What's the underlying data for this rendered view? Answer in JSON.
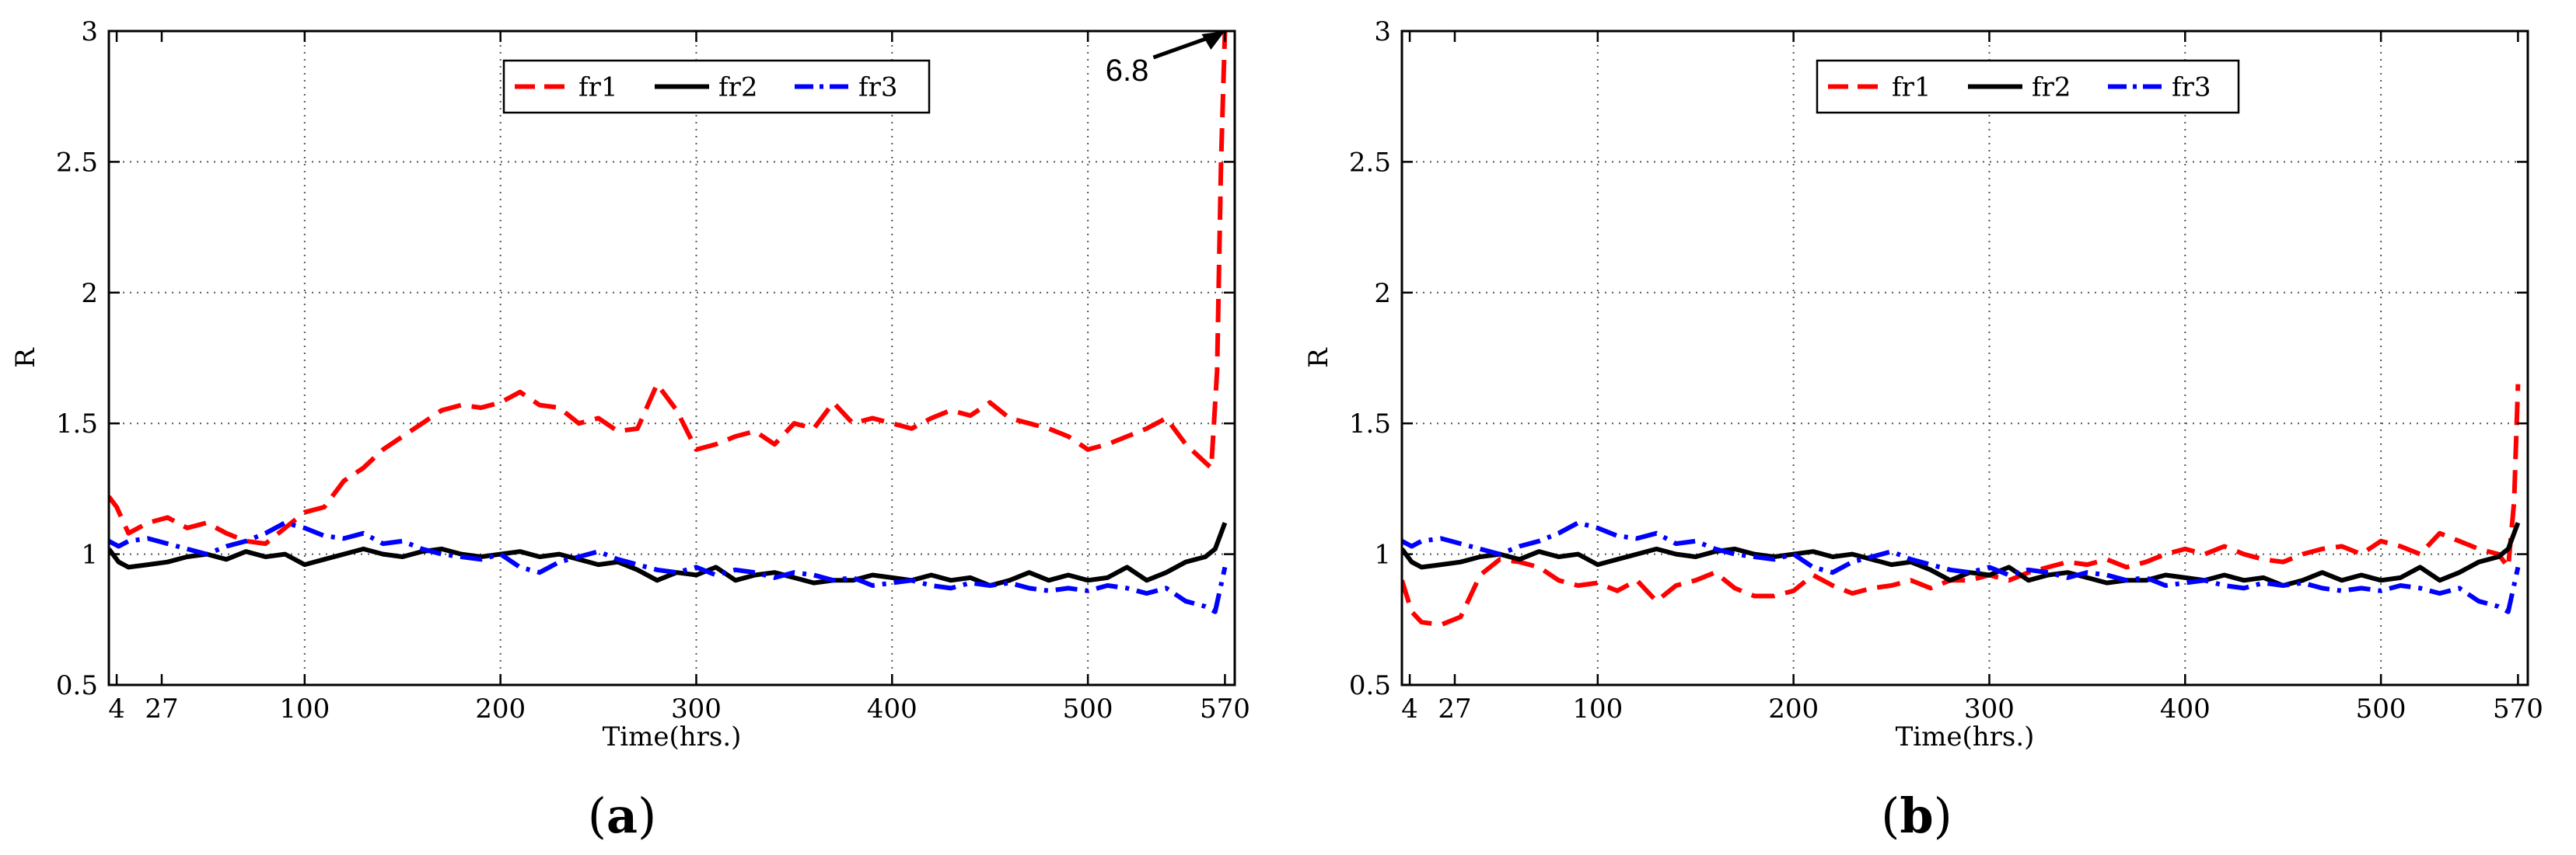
{
  "chart_data": [
    {
      "type": "line",
      "caption": "a",
      "xlabel": "Time(hrs.)",
      "ylabel": "R",
      "xlim": [
        0,
        575
      ],
      "ylim": [
        0.5,
        3
      ],
      "xticks": [
        4,
        27,
        100,
        200,
        300,
        400,
        500,
        570
      ],
      "yticks": [
        0.5,
        1,
        1.5,
        2,
        2.5,
        3
      ],
      "ytick_labels": [
        "0.5",
        "1",
        "1.5",
        "2",
        "2.5",
        "3"
      ],
      "grid": true,
      "legend": "top-center",
      "annotation": {
        "text": "6.8",
        "x": 570,
        "y": 3.0
      },
      "series": [
        {
          "name": "fr1",
          "color": "#ff0000",
          "dash": "dashed",
          "x": [
            0,
            4,
            10,
            20,
            30,
            40,
            50,
            60,
            70,
            80,
            90,
            100,
            110,
            120,
            130,
            140,
            150,
            160,
            170,
            180,
            190,
            200,
            210,
            220,
            230,
            240,
            250,
            260,
            270,
            280,
            290,
            300,
            310,
            320,
            330,
            340,
            350,
            360,
            370,
            380,
            390,
            400,
            410,
            420,
            430,
            440,
            450,
            460,
            470,
            480,
            490,
            500,
            510,
            520,
            530,
            540,
            550,
            560,
            563,
            566,
            568,
            570
          ],
          "values": [
            1.22,
            1.18,
            1.08,
            1.12,
            1.14,
            1.1,
            1.12,
            1.08,
            1.05,
            1.04,
            1.1,
            1.16,
            1.18,
            1.28,
            1.33,
            1.4,
            1.45,
            1.5,
            1.55,
            1.57,
            1.56,
            1.58,
            1.62,
            1.57,
            1.56,
            1.5,
            1.52,
            1.47,
            1.48,
            1.65,
            1.55,
            1.4,
            1.42,
            1.45,
            1.47,
            1.42,
            1.5,
            1.48,
            1.58,
            1.5,
            1.52,
            1.5,
            1.48,
            1.52,
            1.55,
            1.53,
            1.58,
            1.52,
            1.5,
            1.48,
            1.45,
            1.4,
            1.42,
            1.45,
            1.48,
            1.52,
            1.42,
            1.35,
            1.33,
            1.7,
            2.5,
            3.0
          ]
        },
        {
          "name": "fr2",
          "color": "#000000",
          "dash": "solid",
          "x": [
            0,
            5,
            10,
            20,
            30,
            40,
            50,
            60,
            70,
            80,
            90,
            100,
            110,
            120,
            130,
            140,
            150,
            160,
            170,
            180,
            190,
            200,
            210,
            220,
            230,
            240,
            250,
            260,
            270,
            280,
            290,
            300,
            310,
            320,
            330,
            340,
            350,
            360,
            370,
            380,
            390,
            400,
            410,
            420,
            430,
            440,
            450,
            460,
            470,
            480,
            490,
            500,
            510,
            520,
            530,
            540,
            550,
            560,
            565,
            570
          ],
          "values": [
            1.02,
            0.97,
            0.95,
            0.96,
            0.97,
            0.99,
            1.0,
            0.98,
            1.01,
            0.99,
            1.0,
            0.96,
            0.98,
            1.0,
            1.02,
            1.0,
            0.99,
            1.01,
            1.02,
            1.0,
            0.99,
            1.0,
            1.01,
            0.99,
            1.0,
            0.98,
            0.96,
            0.97,
            0.94,
            0.9,
            0.93,
            0.92,
            0.95,
            0.9,
            0.92,
            0.93,
            0.91,
            0.89,
            0.9,
            0.9,
            0.92,
            0.91,
            0.9,
            0.92,
            0.9,
            0.91,
            0.88,
            0.9,
            0.93,
            0.9,
            0.92,
            0.9,
            0.91,
            0.95,
            0.9,
            0.93,
            0.97,
            0.99,
            1.02,
            1.12
          ]
        },
        {
          "name": "fr3",
          "color": "#0000ff",
          "dash": "dashdot",
          "x": [
            0,
            5,
            10,
            20,
            30,
            40,
            50,
            60,
            70,
            80,
            90,
            100,
            110,
            120,
            130,
            140,
            150,
            160,
            170,
            180,
            190,
            200,
            210,
            220,
            230,
            240,
            250,
            260,
            270,
            280,
            290,
            300,
            310,
            320,
            330,
            340,
            350,
            360,
            370,
            380,
            390,
            400,
            410,
            420,
            430,
            440,
            450,
            460,
            470,
            480,
            490,
            500,
            510,
            520,
            530,
            540,
            550,
            560,
            565,
            570
          ],
          "values": [
            1.05,
            1.03,
            1.05,
            1.06,
            1.04,
            1.02,
            1.0,
            1.03,
            1.05,
            1.08,
            1.12,
            1.1,
            1.07,
            1.06,
            1.08,
            1.04,
            1.05,
            1.02,
            1.0,
            0.99,
            0.98,
            1.0,
            0.95,
            0.93,
            0.97,
            0.99,
            1.01,
            0.98,
            0.96,
            0.94,
            0.93,
            0.95,
            0.92,
            0.94,
            0.93,
            0.91,
            0.93,
            0.92,
            0.9,
            0.91,
            0.88,
            0.89,
            0.9,
            0.88,
            0.87,
            0.89,
            0.88,
            0.89,
            0.87,
            0.86,
            0.87,
            0.86,
            0.88,
            0.87,
            0.85,
            0.87,
            0.82,
            0.8,
            0.78,
            0.95
          ]
        }
      ]
    },
    {
      "type": "line",
      "caption": "b",
      "xlabel": "Time(hrs.)",
      "ylabel": "R",
      "xlim": [
        0,
        575
      ],
      "ylim": [
        0.5,
        3
      ],
      "xticks": [
        4,
        27,
        100,
        200,
        300,
        400,
        500,
        570
      ],
      "yticks": [
        0.5,
        1,
        1.5,
        2,
        2.5,
        3
      ],
      "ytick_labels": [
        "0.5",
        "1",
        "1.5",
        "2",
        "2.5",
        "3"
      ],
      "grid": true,
      "legend": "top-center",
      "series": [
        {
          "name": "fr1",
          "color": "#ff0000",
          "dash": "dashed",
          "x": [
            0,
            5,
            10,
            20,
            30,
            40,
            50,
            60,
            70,
            80,
            90,
            100,
            110,
            120,
            130,
            140,
            150,
            160,
            170,
            180,
            190,
            200,
            210,
            220,
            230,
            240,
            250,
            260,
            270,
            280,
            290,
            300,
            310,
            320,
            330,
            340,
            350,
            360,
            370,
            380,
            390,
            400,
            410,
            420,
            430,
            440,
            450,
            460,
            470,
            480,
            490,
            500,
            510,
            520,
            530,
            540,
            550,
            560,
            565,
            568,
            570
          ],
          "values": [
            0.9,
            0.78,
            0.74,
            0.73,
            0.76,
            0.92,
            0.98,
            0.97,
            0.95,
            0.9,
            0.88,
            0.89,
            0.86,
            0.9,
            0.82,
            0.88,
            0.9,
            0.93,
            0.87,
            0.84,
            0.84,
            0.86,
            0.92,
            0.88,
            0.85,
            0.87,
            0.88,
            0.9,
            0.87,
            0.9,
            0.9,
            0.92,
            0.9,
            0.93,
            0.95,
            0.97,
            0.96,
            0.98,
            0.95,
            0.97,
            1.0,
            1.02,
            1.0,
            1.03,
            1.0,
            0.98,
            0.97,
            1.0,
            1.02,
            1.03,
            1.0,
            1.05,
            1.03,
            1.0,
            1.08,
            1.05,
            1.02,
            1.0,
            0.95,
            1.2,
            1.65
          ]
        },
        {
          "name": "fr2",
          "color": "#000000",
          "dash": "solid",
          "x": [
            0,
            5,
            10,
            20,
            30,
            40,
            50,
            60,
            70,
            80,
            90,
            100,
            110,
            120,
            130,
            140,
            150,
            160,
            170,
            180,
            190,
            200,
            210,
            220,
            230,
            240,
            250,
            260,
            270,
            280,
            290,
            300,
            310,
            320,
            330,
            340,
            350,
            360,
            370,
            380,
            390,
            400,
            410,
            420,
            430,
            440,
            450,
            460,
            470,
            480,
            490,
            500,
            510,
            520,
            530,
            540,
            550,
            560,
            565,
            570
          ],
          "values": [
            1.02,
            0.97,
            0.95,
            0.96,
            0.97,
            0.99,
            1.0,
            0.98,
            1.01,
            0.99,
            1.0,
            0.96,
            0.98,
            1.0,
            1.02,
            1.0,
            0.99,
            1.01,
            1.02,
            1.0,
            0.99,
            1.0,
            1.01,
            0.99,
            1.0,
            0.98,
            0.96,
            0.97,
            0.94,
            0.9,
            0.93,
            0.92,
            0.95,
            0.9,
            0.92,
            0.93,
            0.91,
            0.89,
            0.9,
            0.9,
            0.92,
            0.91,
            0.9,
            0.92,
            0.9,
            0.91,
            0.88,
            0.9,
            0.93,
            0.9,
            0.92,
            0.9,
            0.91,
            0.95,
            0.9,
            0.93,
            0.97,
            0.99,
            1.02,
            1.12
          ]
        },
        {
          "name": "fr3",
          "color": "#0000ff",
          "dash": "dashdot",
          "x": [
            0,
            5,
            10,
            20,
            30,
            40,
            50,
            60,
            70,
            80,
            90,
            100,
            110,
            120,
            130,
            140,
            150,
            160,
            170,
            180,
            190,
            200,
            210,
            220,
            230,
            240,
            250,
            260,
            270,
            280,
            290,
            300,
            310,
            320,
            330,
            340,
            350,
            360,
            370,
            380,
            390,
            400,
            410,
            420,
            430,
            440,
            450,
            460,
            470,
            480,
            490,
            500,
            510,
            520,
            530,
            540,
            550,
            560,
            565,
            570
          ],
          "values": [
            1.05,
            1.03,
            1.05,
            1.06,
            1.04,
            1.02,
            1.0,
            1.03,
            1.05,
            1.08,
            1.12,
            1.1,
            1.07,
            1.06,
            1.08,
            1.04,
            1.05,
            1.02,
            1.0,
            0.99,
            0.98,
            1.0,
            0.95,
            0.93,
            0.97,
            0.99,
            1.01,
            0.98,
            0.96,
            0.94,
            0.93,
            0.95,
            0.92,
            0.94,
            0.93,
            0.91,
            0.93,
            0.92,
            0.9,
            0.91,
            0.88,
            0.89,
            0.9,
            0.88,
            0.87,
            0.89,
            0.88,
            0.89,
            0.87,
            0.86,
            0.87,
            0.86,
            0.88,
            0.87,
            0.85,
            0.87,
            0.82,
            0.8,
            0.78,
            0.95
          ]
        }
      ]
    }
  ]
}
